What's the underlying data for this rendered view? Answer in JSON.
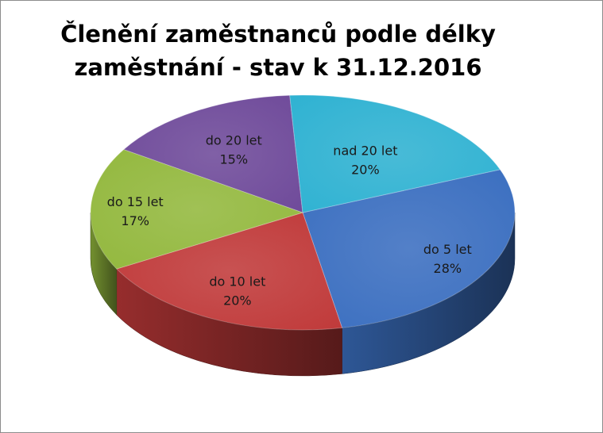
{
  "chart_data": {
    "type": "pie",
    "title_lines": [
      "Členění zaměstnanců podle délky",
      "zaměstnání - stav k 31.12.2016"
    ],
    "categories": [
      "do 5 let",
      "do 10 let",
      "do 15 let",
      "do 20 let",
      "nad 20 let"
    ],
    "values": [
      28,
      20,
      17,
      15,
      20
    ],
    "value_labels": [
      "28%",
      "20%",
      "17%",
      "15%",
      "20%"
    ],
    "colors": [
      "#3b6fc0",
      "#c03a3a",
      "#93b83e",
      "#6f4a9a",
      "#2fb2d2"
    ]
  }
}
